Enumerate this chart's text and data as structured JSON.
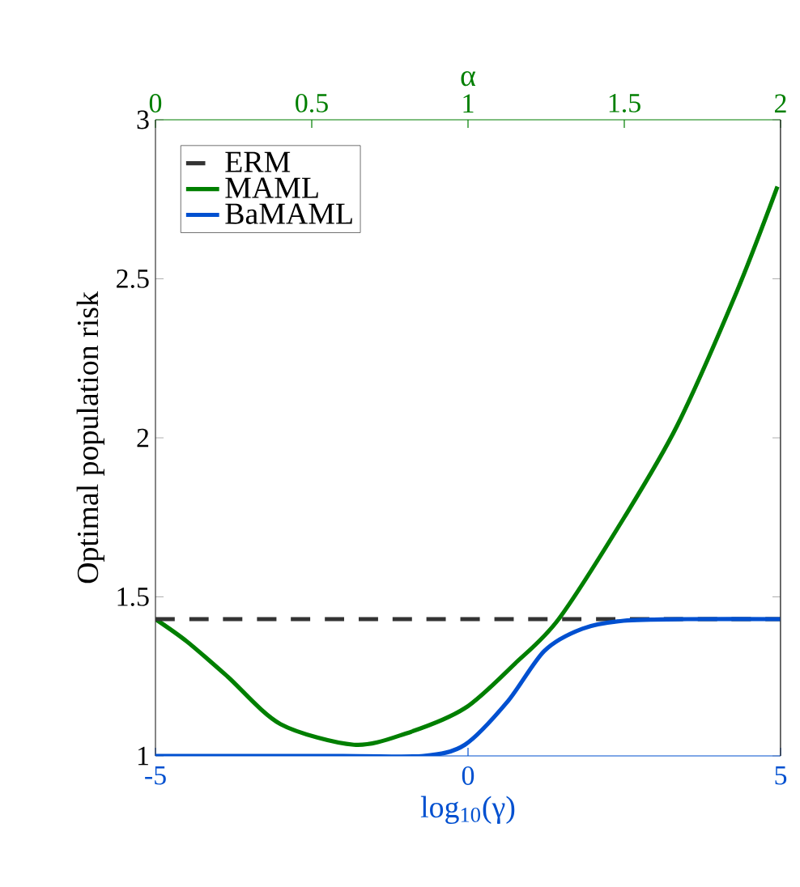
{
  "chart_data": {
    "type": "line",
    "xlabel": "log$_{10}$(γ)",
    "ylabel": "Optimal population risk",
    "x2label": "α",
    "xlim": [
      -5,
      5
    ],
    "xticks": [
      -5,
      0,
      5
    ],
    "x2lim": [
      0,
      2
    ],
    "x2ticks": [
      0,
      0.5,
      1,
      1.5,
      2
    ],
    "ylim": [
      1,
      3
    ],
    "yticks": [
      1,
      1.5,
      2,
      2.5,
      3
    ],
    "legend": "top left",
    "grid": false,
    "marker": "none",
    "series": [
      {
        "name": "ERM",
        "color": "#333333",
        "line_style": "dashed",
        "x": [
          -5,
          5
        ],
        "values": [
          1.43,
          1.43
        ]
      },
      {
        "name": "MAML",
        "color": "#007f00",
        "line_style": "solid",
        "axis": "x2",
        "x": [
          0,
          0.1,
          0.23,
          0.4,
          0.635,
          0.8,
          0.99,
          1.15,
          1.29,
          1.5,
          1.67,
          1.86,
          1.99
        ],
        "values": [
          1.43,
          1.36,
          1.25,
          1.1,
          1.035,
          1.07,
          1.15,
          1.29,
          1.43,
          1.75,
          2.04,
          2.46,
          2.79
        ]
      },
      {
        "name": "BaMAML",
        "color": "#0050d0",
        "line_style": "solid",
        "x": [
          -5,
          -2,
          -0.71,
          -0.05,
          0.63,
          1.22,
          1.83,
          2.49,
          3.5,
          5
        ],
        "values": [
          1,
          1,
          1.0,
          1.035,
          1.17,
          1.33,
          1.4,
          1.425,
          1.43,
          1.43
        ]
      }
    ]
  }
}
